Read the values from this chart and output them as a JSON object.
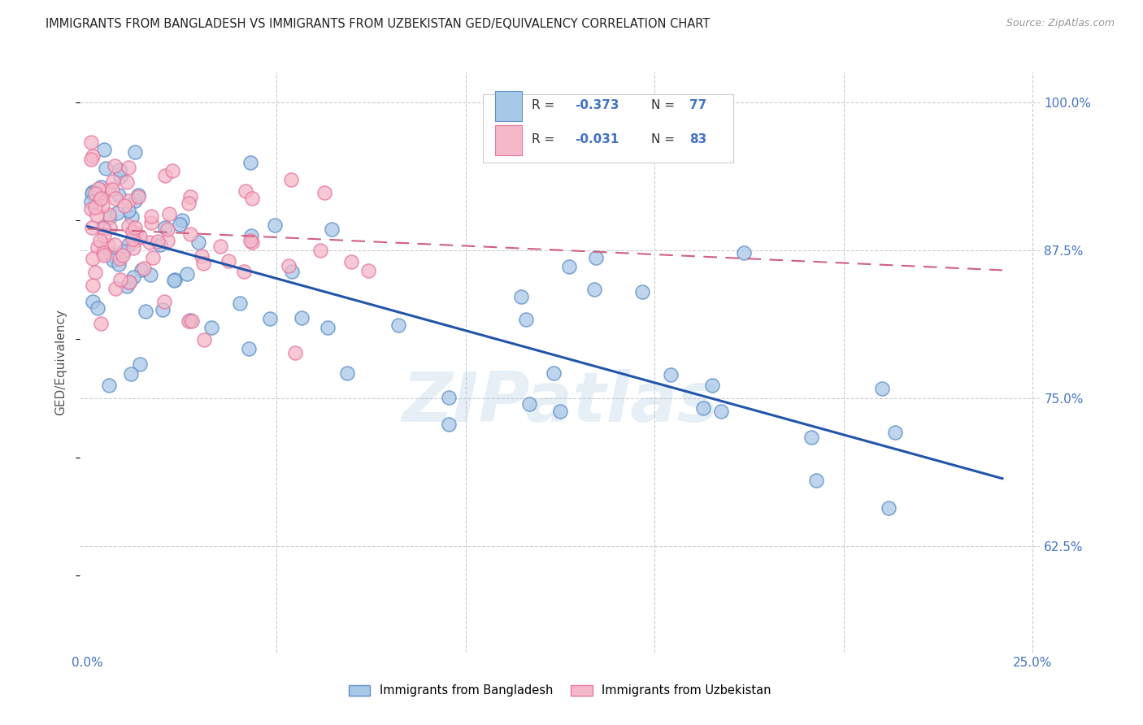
{
  "title": "IMMIGRANTS FROM BANGLADESH VS IMMIGRANTS FROM UZBEKISTAN GED/EQUIVALENCY CORRELATION CHART",
  "source": "Source: ZipAtlas.com",
  "ylabel": "GED/Equivalency",
  "xlim": [
    -0.002,
    0.252
  ],
  "ylim": [
    0.535,
    1.025
  ],
  "xtick_positions": [
    0.0,
    0.05,
    0.1,
    0.15,
    0.2,
    0.25
  ],
  "xticklabels": [
    "0.0%",
    "",
    "",
    "",
    "",
    "25.0%"
  ],
  "ytick_positions": [
    0.625,
    0.75,
    0.875,
    1.0
  ],
  "yticklabels": [
    "62.5%",
    "75.0%",
    "87.5%",
    "100.0%"
  ],
  "legend_labels": [
    "Immigrants from Bangladesh",
    "Immigrants from Uzbekistan"
  ],
  "blue_color": "#a8c8e8",
  "pink_color": "#f4b8c8",
  "blue_edge_color": "#6090c8",
  "pink_edge_color": "#e878a0",
  "blue_line_color": "#2255aa",
  "pink_line_color": "#d06080",
  "watermark": "ZIPatlas",
  "blue_line_x0": 0.0,
  "blue_line_x1": 0.242,
  "blue_line_y0": 0.895,
  "blue_line_y1": 0.682,
  "pink_line_x0": 0.0,
  "pink_line_x1": 0.242,
  "pink_line_y0": 0.893,
  "pink_line_y1": 0.858
}
